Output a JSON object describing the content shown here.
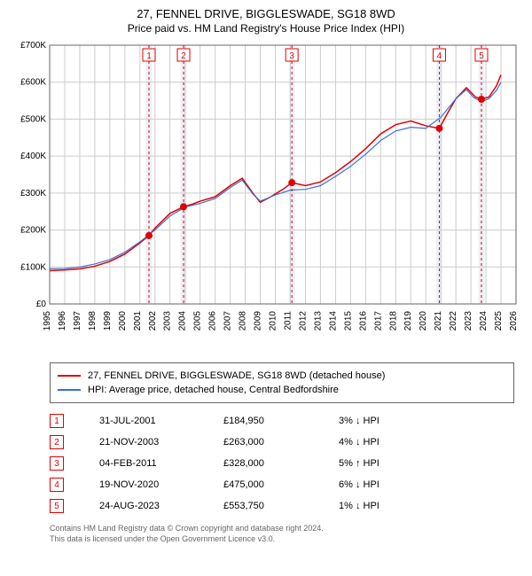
{
  "title": "27, FENNEL DRIVE, BIGGLESWADE, SG18 8WD",
  "subtitle": "Price paid vs. HM Land Registry's House Price Index (HPI)",
  "chart": {
    "type": "line",
    "background_color": "#ffffff",
    "grid_color": "#cccccc",
    "axis_color": "#666666",
    "band_color": "#ecf0f7",
    "font_family": "Arial",
    "label_fontsize": 10,
    "y": {
      "min": 0,
      "max": 700000,
      "step": 100000,
      "labels": [
        "£0",
        "£100K",
        "£200K",
        "£300K",
        "£400K",
        "£500K",
        "£600K",
        "£700K"
      ]
    },
    "x": {
      "min": 1995,
      "max": 2026,
      "ticks": [
        1995,
        1996,
        1997,
        1998,
        1999,
        2000,
        2001,
        2002,
        2003,
        2004,
        2005,
        2006,
        2007,
        2008,
        2009,
        2010,
        2011,
        2012,
        2013,
        2014,
        2015,
        2016,
        2017,
        2018,
        2019,
        2020,
        2021,
        2022,
        2023,
        2024,
        2025,
        2026
      ]
    },
    "bands": [
      {
        "from": 2001.4,
        "to": 2001.8
      },
      {
        "from": 2003.7,
        "to": 2004.1
      },
      {
        "from": 2010.9,
        "to": 2011.3
      },
      {
        "from": 2020.7,
        "to": 2021.1
      },
      {
        "from": 2023.5,
        "to": 2023.9
      }
    ],
    "series": [
      {
        "id": "property",
        "label": "27, FENNEL DRIVE, BIGGLESWADE, SG18 8WD (detached house)",
        "color": "#e00000",
        "width": 1.5,
        "points": [
          [
            1995.0,
            90000
          ],
          [
            1996.0,
            92000
          ],
          [
            1997.0,
            95000
          ],
          [
            1998.0,
            102000
          ],
          [
            1999.0,
            115000
          ],
          [
            2000.0,
            135000
          ],
          [
            2001.0,
            165000
          ],
          [
            2001.6,
            184950
          ],
          [
            2002.0,
            205000
          ],
          [
            2003.0,
            245000
          ],
          [
            2003.9,
            263000
          ],
          [
            2004.5,
            270000
          ],
          [
            2005.0,
            278000
          ],
          [
            2006.0,
            290000
          ],
          [
            2007.0,
            320000
          ],
          [
            2007.8,
            340000
          ],
          [
            2008.5,
            300000
          ],
          [
            2009.0,
            275000
          ],
          [
            2009.7,
            290000
          ],
          [
            2010.5,
            310000
          ],
          [
            2011.1,
            328000
          ],
          [
            2012.0,
            320000
          ],
          [
            2013.0,
            330000
          ],
          [
            2014.0,
            355000
          ],
          [
            2015.0,
            385000
          ],
          [
            2016.0,
            420000
          ],
          [
            2017.0,
            460000
          ],
          [
            2018.0,
            485000
          ],
          [
            2019.0,
            495000
          ],
          [
            2020.0,
            482000
          ],
          [
            2020.9,
            475000
          ],
          [
            2021.5,
            520000
          ],
          [
            2022.0,
            555000
          ],
          [
            2022.7,
            585000
          ],
          [
            2023.3,
            560000
          ],
          [
            2023.7,
            553750
          ],
          [
            2024.2,
            560000
          ],
          [
            2024.7,
            590000
          ],
          [
            2025.0,
            620000
          ]
        ]
      },
      {
        "id": "hpi",
        "label": "HPI: Average price, detached house, Central Bedfordshire",
        "color": "#3a6fd8",
        "width": 1.2,
        "points": [
          [
            1995.0,
            95000
          ],
          [
            1996.0,
            96000
          ],
          [
            1997.0,
            100000
          ],
          [
            1998.0,
            108000
          ],
          [
            1999.0,
            120000
          ],
          [
            2000.0,
            140000
          ],
          [
            2001.0,
            168000
          ],
          [
            2002.0,
            200000
          ],
          [
            2003.0,
            238000
          ],
          [
            2004.0,
            262000
          ],
          [
            2005.0,
            272000
          ],
          [
            2006.0,
            285000
          ],
          [
            2007.0,
            315000
          ],
          [
            2007.8,
            335000
          ],
          [
            2008.5,
            298000
          ],
          [
            2009.0,
            278000
          ],
          [
            2010.0,
            295000
          ],
          [
            2011.0,
            308000
          ],
          [
            2012.0,
            310000
          ],
          [
            2013.0,
            320000
          ],
          [
            2014.0,
            345000
          ],
          [
            2015.0,
            372000
          ],
          [
            2016.0,
            405000
          ],
          [
            2017.0,
            442000
          ],
          [
            2018.0,
            468000
          ],
          [
            2019.0,
            478000
          ],
          [
            2020.0,
            475000
          ],
          [
            2021.0,
            505000
          ],
          [
            2022.0,
            555000
          ],
          [
            2022.7,
            580000
          ],
          [
            2023.2,
            558000
          ],
          [
            2023.7,
            548000
          ],
          [
            2024.2,
            555000
          ],
          [
            2024.7,
            578000
          ],
          [
            2025.0,
            600000
          ]
        ]
      }
    ],
    "sale_markers": {
      "line_color": "#e00000",
      "line_dash": "3,3",
      "box_border": "#e00000",
      "box_text": "#e00000",
      "dot_color": "#e00000",
      "dot_radius": 4,
      "items": [
        {
          "n": "1",
          "x": 2001.6,
          "y": 184950
        },
        {
          "n": "2",
          "x": 2003.9,
          "y": 263000
        },
        {
          "n": "3",
          "x": 2011.1,
          "y": 328000
        },
        {
          "n": "4",
          "x": 2020.9,
          "y": 475000
        },
        {
          "n": "5",
          "x": 2023.7,
          "y": 553750
        }
      ]
    }
  },
  "legend": {
    "items": [
      {
        "color": "#e00000",
        "label": "27, FENNEL DRIVE, BIGGLESWADE, SG18 8WD (detached house)"
      },
      {
        "color": "#3a6fd8",
        "label": "HPI: Average price, detached house, Central Bedfordshire"
      }
    ]
  },
  "sales": [
    {
      "n": "1",
      "date": "31-JUL-2001",
      "price": "£184,950",
      "hpi": "3% ↓ HPI"
    },
    {
      "n": "2",
      "date": "21-NOV-2003",
      "price": "£263,000",
      "hpi": "4% ↓ HPI"
    },
    {
      "n": "3",
      "date": "04-FEB-2011",
      "price": "£328,000",
      "hpi": "5% ↑ HPI"
    },
    {
      "n": "4",
      "date": "19-NOV-2020",
      "price": "£475,000",
      "hpi": "6% ↓ HPI"
    },
    {
      "n": "5",
      "date": "24-AUG-2023",
      "price": "£553,750",
      "hpi": "1% ↓ HPI"
    }
  ],
  "footer": {
    "line1": "Contains HM Land Registry data © Crown copyright and database right 2024.",
    "line2": "This data is licensed under the Open Government Licence v3.0."
  }
}
